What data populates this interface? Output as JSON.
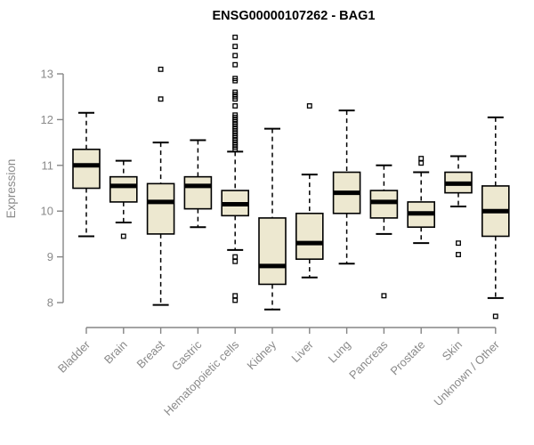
{
  "chart_data": {
    "type": "boxplot",
    "title": "ENSG00000107262 - BAG1",
    "xlabel": "",
    "ylabel": "Expression",
    "yticks": [
      8,
      9,
      10,
      11,
      12,
      13
    ],
    "ylim": [
      7.6,
      13.9
    ],
    "grid": false,
    "legend": "none",
    "categories": [
      "Bladder",
      "Brain",
      "Breast",
      "Gastric",
      "Hematopoietic cells",
      "Kidney",
      "Liver",
      "Lung",
      "Pancreas",
      "Prostate",
      "Skin",
      "Unknown / Other"
    ],
    "series": [
      {
        "name": "Bladder",
        "whisker_low": 9.45,
        "q1": 10.5,
        "median": 11.0,
        "q3": 11.35,
        "whisker_high": 12.15,
        "outliers": []
      },
      {
        "name": "Brain",
        "whisker_low": 9.75,
        "q1": 10.2,
        "median": 10.55,
        "q3": 10.75,
        "whisker_high": 11.1,
        "outliers": [
          9.45
        ]
      },
      {
        "name": "Breast",
        "whisker_low": 7.95,
        "q1": 9.5,
        "median": 10.2,
        "q3": 10.6,
        "whisker_high": 11.5,
        "outliers": [
          12.45,
          13.1
        ]
      },
      {
        "name": "Gastric",
        "whisker_low": 9.65,
        "q1": 10.05,
        "median": 10.55,
        "q3": 10.75,
        "whisker_high": 11.55,
        "outliers": []
      },
      {
        "name": "Hematopoietic cells",
        "whisker_low": 9.15,
        "q1": 9.9,
        "median": 10.15,
        "q3": 10.45,
        "whisker_high": 11.3,
        "outliers": [
          11.35,
          11.4,
          11.45,
          11.5,
          11.55,
          11.6,
          11.65,
          11.7,
          11.75,
          11.8,
          11.85,
          11.9,
          11.95,
          12.0,
          12.05,
          12.1,
          12.3,
          12.45,
          12.5,
          12.55,
          12.6,
          12.85,
          12.9,
          13.2,
          13.4,
          13.6,
          13.8,
          9.0,
          8.9,
          8.15,
          8.05
        ]
      },
      {
        "name": "Kidney",
        "whisker_low": 7.85,
        "q1": 8.4,
        "median": 8.8,
        "q3": 9.85,
        "whisker_high": 11.8,
        "outliers": []
      },
      {
        "name": "Liver",
        "whisker_low": 8.55,
        "q1": 8.95,
        "median": 9.3,
        "q3": 9.95,
        "whisker_high": 10.8,
        "outliers": [
          12.3
        ]
      },
      {
        "name": "Lung",
        "whisker_low": 8.85,
        "q1": 9.95,
        "median": 10.4,
        "q3": 10.85,
        "whisker_high": 12.2,
        "outliers": []
      },
      {
        "name": "Pancreas",
        "whisker_low": 9.5,
        "q1": 9.85,
        "median": 10.2,
        "q3": 10.45,
        "whisker_high": 11.0,
        "outliers": [
          8.15
        ]
      },
      {
        "name": "Prostate",
        "whisker_low": 9.3,
        "q1": 9.65,
        "median": 9.95,
        "q3": 10.2,
        "whisker_high": 10.85,
        "outliers": [
          11.05,
          11.15
        ]
      },
      {
        "name": "Skin",
        "whisker_low": 10.1,
        "q1": 10.4,
        "median": 10.6,
        "q3": 10.85,
        "whisker_high": 11.2,
        "outliers": [
          9.3,
          9.05
        ]
      },
      {
        "name": "Unknown / Other",
        "whisker_low": 8.1,
        "q1": 9.45,
        "median": 10.0,
        "q3": 10.55,
        "whisker_high": 12.05,
        "outliers": [
          7.7
        ]
      }
    ],
    "colors": {
      "box_fill": "#EDE8D0",
      "box_stroke": "#000000",
      "median": "#000000",
      "whisker": "#000000",
      "outlier": "#000000",
      "axis_line": "#858585",
      "tick_text": "#8A8A8A",
      "title_text": "#000000"
    }
  }
}
